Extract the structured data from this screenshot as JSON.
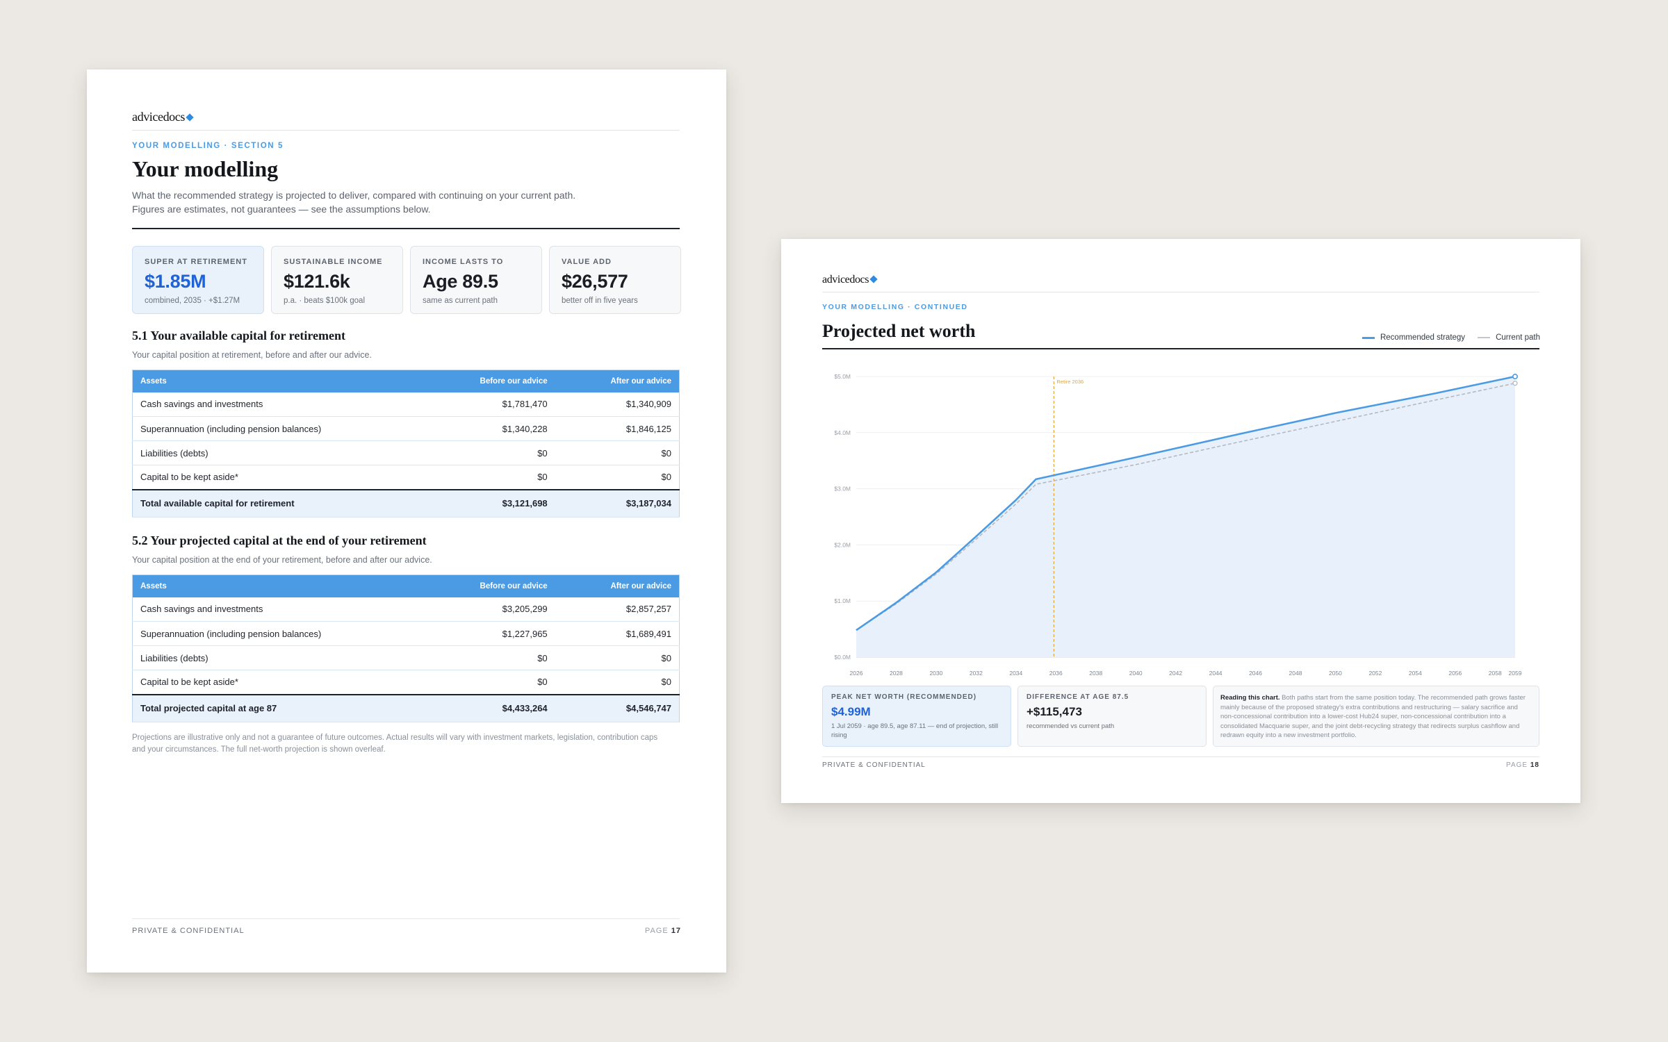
{
  "brand": {
    "name": "advicedocs"
  },
  "left": {
    "eyebrow": "YOUR MODELLING · SECTION 5",
    "title": "Your modelling",
    "intro_1": "What the recommended strategy is projected to deliver, compared with continuing on your current path.",
    "intro_2": "Figures are estimates, not guarantees — see the assumptions below.",
    "kpis": [
      {
        "label": "SUPER AT RETIREMENT",
        "value": "$1.85M",
        "sub": "combined, 2035 · +$1.27M"
      },
      {
        "label": "SUSTAINABLE INCOME",
        "value": "$121.6k",
        "sub": "p.a. · beats $100k goal"
      },
      {
        "label": "INCOME LASTS TO",
        "value": "Age 89.5",
        "sub": "same as current path"
      },
      {
        "label": "VALUE ADD",
        "value": "$26,577",
        "sub": "better off in five years"
      }
    ],
    "section1": {
      "heading": "5.1 Your available capital for retirement",
      "sub": "Your capital position at retirement, before and after our advice.",
      "columns": [
        "Assets",
        "Before our advice",
        "After our advice"
      ],
      "rows": [
        [
          "Cash savings and investments",
          "$1,781,470",
          "$1,340,909"
        ],
        [
          "Superannuation (including pension balances)",
          "$1,340,228",
          "$1,846,125"
        ],
        [
          "Liabilities (debts)",
          "$0",
          "$0"
        ],
        [
          "Capital to be kept aside*",
          "$0",
          "$0"
        ]
      ],
      "total": [
        "Total available capital for retirement",
        "$3,121,698",
        "$3,187,034"
      ]
    },
    "section2": {
      "heading": "5.2 Your projected capital at the end of your retirement",
      "sub": "Your capital position at the end of your retirement, before and after our advice.",
      "columns": [
        "Assets",
        "Before our advice",
        "After our advice"
      ],
      "rows": [
        [
          "Cash savings and investments",
          "$3,205,299",
          "$2,857,257"
        ],
        [
          "Superannuation (including pension balances)",
          "$1,227,965",
          "$1,689,491"
        ],
        [
          "Liabilities (debts)",
          "$0",
          "$0"
        ],
        [
          "Capital to be kept aside*",
          "$0",
          "$0"
        ]
      ],
      "total": [
        "Total projected capital at age 87",
        "$4,433,264",
        "$4,546,747"
      ]
    },
    "note_1": "Projections are illustrative only and not a guarantee of future outcomes. Actual results will vary with investment markets, legislation, contribution caps",
    "note_2": "and your circumstances. The full net-worth projection is shown overleaf.",
    "footer": {
      "confidential": "PRIVATE & CONFIDENTIAL",
      "page_label": "PAGE",
      "page_num": "17"
    }
  },
  "right": {
    "eyebrow": "YOUR MODELLING · CONTINUED",
    "title": "Projected net worth",
    "legend": {
      "recommended": "Recommended strategy",
      "current": "Current path"
    },
    "cards": {
      "peak_label": "PEAK NET WORTH (RECOMMENDED)",
      "peak_value": "$4.99M",
      "peak_sub": "1 Jul 2059 · age 89.5, age 87.11 — end of projection, still rising",
      "diff_label": "DIFFERENCE AT AGE 87.5",
      "diff_value": "+$115,473",
      "diff_sub": "recommended vs current path",
      "reading_title": "Reading this chart.",
      "reading_text": "Both paths start from the same position today. The recommended path grows faster mainly because of the proposed strategy's extra contributions and restructuring — salary sacrifice and non-concessional contribution into a lower-cost Hub24 super, non-concessional contribution into a consolidated Macquarie super, and the joint debt-recycling strategy that redirects surplus cashflow and redrawn equity into a new investment portfolio."
    },
    "footer": {
      "confidential": "PRIVATE & CONFIDENTIAL",
      "page_label": "PAGE",
      "page_num": "18"
    }
  },
  "chart_data": {
    "type": "area",
    "title": "Projected net worth",
    "xlabel": "",
    "ylabel": "",
    "ylim": [
      0,
      5.0
    ],
    "yticks": [
      "$0.0M",
      "$1.0M",
      "$2.0M",
      "$3.0M",
      "$4.0M",
      "$5.0M"
    ],
    "xticks": [
      "2026",
      "2028",
      "2030",
      "2032",
      "2034",
      "2036",
      "2038",
      "2040",
      "2042",
      "2044",
      "2046",
      "2048",
      "2050",
      "2052",
      "2054",
      "2056",
      "2058",
      "2059"
    ],
    "xlim": [
      2026,
      2059
    ],
    "annotation": {
      "label": "Retire 2036",
      "x": 2035.9
    },
    "grid": true,
    "legend_position": "top-right",
    "colors": {
      "recommended": "#4a9be4",
      "current": "#b4b9bf",
      "annotation": "#e3a63a"
    },
    "series": [
      {
        "name": "Recommended strategy",
        "x": [
          2026,
          2028,
          2030,
          2032,
          2034,
          2035,
          2040,
          2045,
          2050,
          2055,
          2059
        ],
        "values": [
          0.48,
          0.97,
          1.51,
          2.15,
          2.8,
          3.17,
          3.56,
          3.96,
          4.35,
          4.7,
          5.0
        ]
      },
      {
        "name": "Current path",
        "x": [
          2026,
          2028,
          2030,
          2032,
          2034,
          2035,
          2040,
          2045,
          2050,
          2055,
          2059
        ],
        "values": [
          0.48,
          0.95,
          1.48,
          2.1,
          2.73,
          3.08,
          3.43,
          3.82,
          4.2,
          4.58,
          4.88
        ]
      }
    ]
  }
}
